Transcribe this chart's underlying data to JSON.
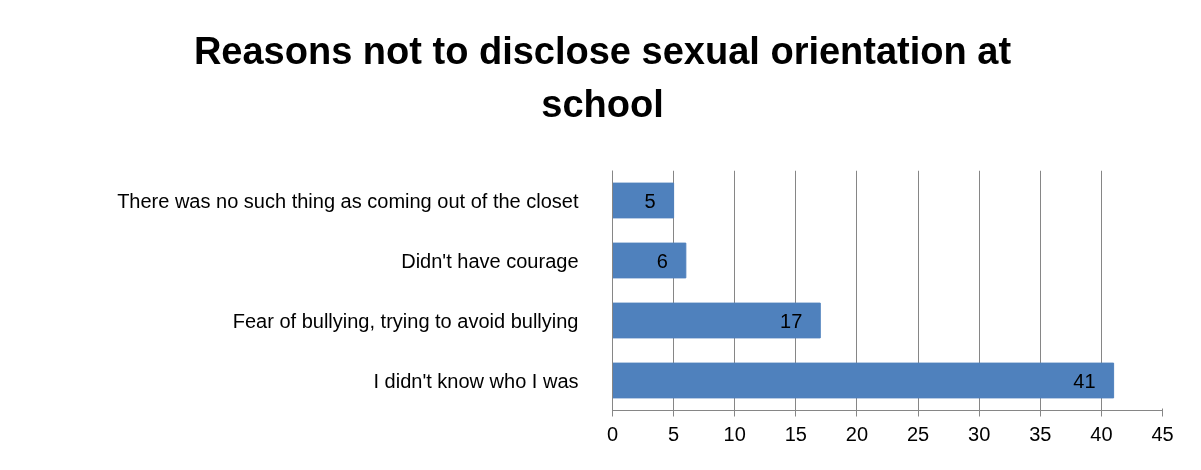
{
  "chart_data": {
    "type": "bar",
    "orientation": "horizontal",
    "title": "Reasons not to disclose sexual orientation at school",
    "categories": [
      "There was no such thing as coming out of the closet",
      "Didn't have courage",
      "Fear of bullying, trying to avoid bullying",
      "I didn't know who I was"
    ],
    "values": [
      5,
      6,
      17,
      41
    ],
    "color": "#4f81bd",
    "xlim": [
      0,
      45
    ],
    "xticks": [
      0,
      5,
      10,
      15,
      20,
      25,
      30,
      35,
      40,
      45
    ],
    "grid": "x",
    "data_labels": true
  }
}
